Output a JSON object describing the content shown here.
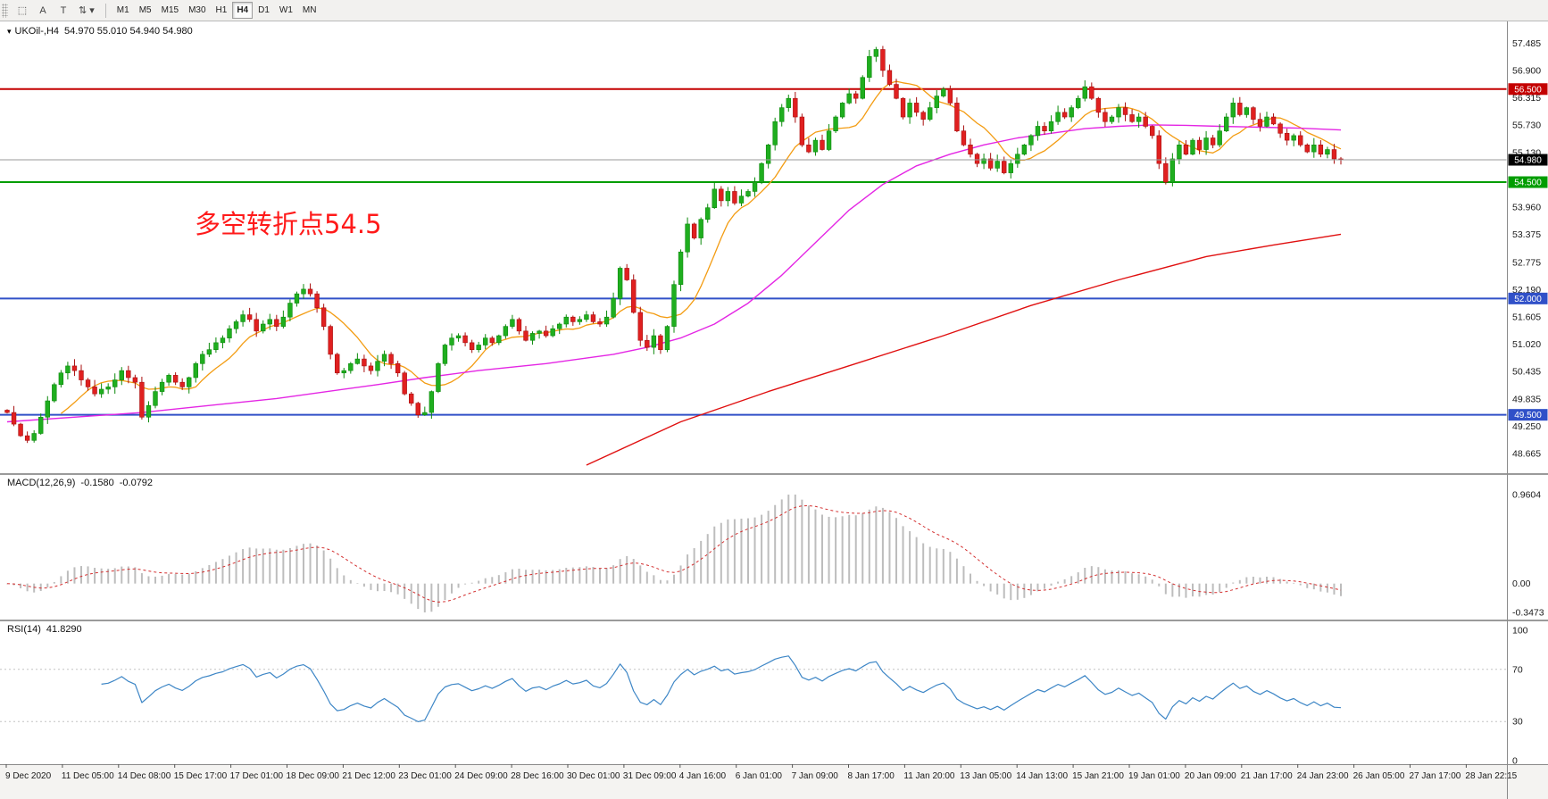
{
  "toolbar": {
    "tools": [
      {
        "name": "marquee-tool-icon",
        "glyph": "⬚"
      },
      {
        "name": "cursor-a-tool-icon",
        "glyph": "A"
      },
      {
        "name": "text-tool-icon",
        "glyph": "T"
      },
      {
        "name": "objects-dropdown-icon",
        "glyph": "⇅ ▾"
      }
    ],
    "timeframes": [
      {
        "label": "M1",
        "active": false
      },
      {
        "label": "M5",
        "active": false
      },
      {
        "label": "M15",
        "active": false
      },
      {
        "label": "M30",
        "active": false
      },
      {
        "label": "H1",
        "active": false
      },
      {
        "label": "H4",
        "active": true
      },
      {
        "label": "D1",
        "active": false
      },
      {
        "label": "W1",
        "active": false
      },
      {
        "label": "MN",
        "active": false
      }
    ]
  },
  "main_chart": {
    "collapse_arrow": "▾",
    "symbol_label": "UKOil-,H4",
    "ohlc_text": "54.970 55.010 54.940 54.980",
    "annotation": {
      "text": "多空转折点54.5",
      "color": "#ff1a1a"
    },
    "y_axis_labels": [
      "57.485",
      "56.900",
      "56.315",
      "55.730",
      "55.130",
      "54.545",
      "53.960",
      "53.375",
      "52.775",
      "52.190",
      "51.605",
      "51.020",
      "50.435",
      "49.835",
      "49.250",
      "48.665"
    ],
    "hlines": [
      {
        "value": 56.5,
        "label": "56.500",
        "color": "#c40000",
        "width": 2
      },
      {
        "value": 54.5,
        "label": "54.500",
        "color": "#009d00",
        "width": 2
      },
      {
        "value": 52.0,
        "label": "52.000",
        "color": "#3050c8",
        "width": 2
      },
      {
        "value": 49.5,
        "label": "49.500",
        "color": "#3050c8",
        "width": 2
      }
    ],
    "current_price": {
      "value": 54.98,
      "label": "54.980",
      "line_color": "#9a9a9a",
      "badge_color": "#000000"
    }
  },
  "chart_data": {
    "type": "candlestick",
    "title": "UKOil-,H4",
    "ylim": [
      48.4,
      57.8
    ],
    "bull_color": "#1fae1f",
    "bear_color": "#e02020",
    "candles_closes": [
      49.55,
      49.3,
      49.05,
      48.95,
      49.1,
      49.45,
      49.8,
      50.15,
      50.4,
      50.55,
      50.45,
      50.25,
      50.1,
      49.95,
      50.05,
      50.1,
      50.25,
      50.45,
      50.3,
      50.2,
      49.45,
      49.7,
      50.0,
      50.2,
      50.35,
      50.2,
      50.1,
      50.3,
      50.6,
      50.8,
      50.9,
      51.05,
      51.15,
      51.35,
      51.5,
      51.65,
      51.55,
      51.3,
      51.45,
      51.55,
      51.4,
      51.6,
      51.9,
      52.1,
      52.2,
      52.1,
      51.8,
      51.4,
      50.8,
      50.4,
      50.45,
      50.6,
      50.7,
      50.55,
      50.45,
      50.65,
      50.8,
      50.6,
      50.4,
      49.95,
      49.75,
      49.5,
      49.55,
      50.0,
      50.6,
      51.0,
      51.15,
      51.2,
      51.05,
      50.9,
      51.0,
      51.15,
      51.05,
      51.2,
      51.4,
      51.55,
      51.3,
      51.1,
      51.25,
      51.3,
      51.2,
      51.35,
      51.45,
      51.6,
      51.5,
      51.55,
      51.65,
      51.5,
      51.45,
      51.6,
      52.0,
      52.65,
      52.4,
      51.7,
      51.1,
      50.95,
      51.2,
      50.9,
      51.4,
      52.3,
      53.0,
      53.6,
      53.3,
      53.7,
      53.95,
      54.35,
      54.1,
      54.3,
      54.05,
      54.2,
      54.3,
      54.5,
      54.9,
      55.3,
      55.8,
      56.1,
      56.3,
      55.9,
      55.3,
      55.15,
      55.4,
      55.2,
      55.6,
      55.9,
      56.2,
      56.4,
      56.3,
      56.75,
      57.2,
      57.35,
      56.9,
      56.6,
      56.3,
      55.9,
      56.2,
      56.0,
      55.85,
      56.1,
      56.35,
      56.5,
      56.2,
      55.6,
      55.3,
      55.1,
      54.9,
      55.0,
      54.8,
      54.95,
      54.7,
      54.9,
      55.1,
      55.3,
      55.5,
      55.7,
      55.6,
      55.8,
      56.0,
      55.9,
      56.1,
      56.3,
      56.55,
      56.3,
      56.0,
      55.8,
      55.9,
      56.1,
      55.95,
      55.8,
      55.9,
      55.7,
      55.5,
      54.9,
      54.5,
      55.0,
      55.3,
      55.1,
      55.4,
      55.2,
      55.45,
      55.3,
      55.6,
      55.9,
      56.2,
      55.95,
      56.1,
      55.85,
      55.7,
      55.9,
      55.75,
      55.55,
      55.4,
      55.5,
      55.3,
      55.15,
      55.3,
      55.1,
      55.2,
      55.0,
      54.98
    ],
    "ma_fast": {
      "name": "ma-fast",
      "period": 9,
      "color": "#f39c12"
    },
    "ma_mid": {
      "name": "ma-mid",
      "color": "#e426e4",
      "anchors": [
        [
          0,
          49.35
        ],
        [
          20,
          49.55
        ],
        [
          40,
          49.85
        ],
        [
          55,
          50.15
        ],
        [
          62,
          50.3
        ],
        [
          70,
          50.45
        ],
        [
          80,
          50.6
        ],
        [
          90,
          50.8
        ],
        [
          95,
          50.95
        ],
        [
          100,
          51.15
        ],
        [
          105,
          51.45
        ],
        [
          110,
          51.9
        ],
        [
          115,
          52.5
        ],
        [
          120,
          53.2
        ],
        [
          125,
          53.9
        ],
        [
          130,
          54.45
        ],
        [
          135,
          54.85
        ],
        [
          140,
          55.1
        ],
        [
          145,
          55.3
        ],
        [
          150,
          55.45
        ],
        [
          155,
          55.55
        ],
        [
          160,
          55.65
        ],
        [
          165,
          55.7
        ],
        [
          170,
          55.73
        ],
        [
          175,
          55.72
        ],
        [
          180,
          55.7
        ],
        [
          186,
          55.68
        ],
        [
          192,
          55.66
        ],
        [
          198,
          55.62
        ]
      ]
    },
    "ma_slow": {
      "name": "ma-slow",
      "color": "#e01010",
      "anchors": [
        [
          86,
          48.42
        ],
        [
          100,
          49.35
        ],
        [
          113,
          50.0
        ],
        [
          126,
          50.6
        ],
        [
          139,
          51.2
        ],
        [
          152,
          51.85
        ],
        [
          165,
          52.4
        ],
        [
          178,
          52.9
        ],
        [
          188,
          53.15
        ],
        [
          198,
          53.38
        ]
      ]
    },
    "macd": {
      "label": "MACD(12,26,9)",
      "main_value": "-0.1580",
      "signal_value": "-0.0792",
      "fast": 12,
      "slow": 26,
      "signal": 9,
      "hist_color": "#bdbdbd",
      "signal_color": "#d32f2f",
      "axis_labels": {
        "top": "0.9604",
        "zero": "0.00",
        "bottom": "-0.3473"
      }
    },
    "rsi": {
      "label": "RSI(14)",
      "value": "41.8290",
      "period": 14,
      "line_color": "#3d86c6",
      "levels": [
        {
          "v": 100,
          "label": "100",
          "line": false
        },
        {
          "v": 70,
          "label": "70",
          "line": true
        },
        {
          "v": 30,
          "label": "30",
          "line": true
        },
        {
          "v": 0,
          "label": "0",
          "line": false
        }
      ]
    }
  },
  "time_axis": {
    "labels": [
      "9 Dec 2020",
      "11 Dec 05:00",
      "14 Dec 08:00",
      "15 Dec 17:00",
      "17 Dec 01:00",
      "18 Dec 09:00",
      "21 Dec 12:00",
      "23 Dec 01:00",
      "24 Dec 09:00",
      "28 Dec 16:00",
      "30 Dec 01:00",
      "31 Dec 09:00",
      "4 Jan 16:00",
      "6 Jan 01:00",
      "7 Jan 09:00",
      "8 Jan 17:00",
      "11 Jan 20:00",
      "13 Jan 05:00",
      "14 Jan 13:00",
      "15 Jan 21:00",
      "19 Jan 01:00",
      "20 Jan 09:00",
      "21 Jan 17:00",
      "24 Jan 23:00",
      "26 Jan 05:00",
      "27 Jan 17:00",
      "28 Jan 22:15"
    ]
  }
}
